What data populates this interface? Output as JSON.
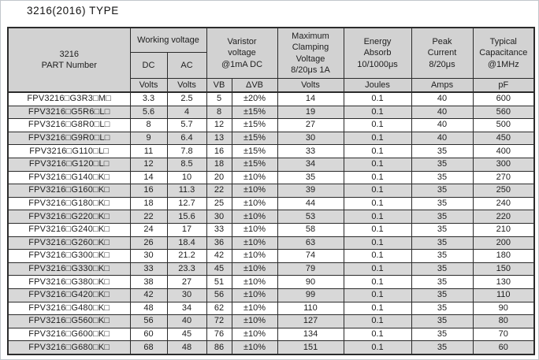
{
  "title": "3216(2016) TYPE",
  "colors": {
    "border": "#2b2b2b",
    "header_bg": "#d2d2d2",
    "row_alt": "#d8d8d8",
    "text": "#1e1e1e"
  },
  "table": {
    "header": {
      "part_number": "3216\nPART Number",
      "working_voltage": "Working voltage",
      "dc": "DC",
      "ac": "AC",
      "varistor_voltage": "Varistor\nvoltage\n@1mA DC",
      "max_clamping_voltage": "Maximum\nClamping\nVoltage\n8/20μs 1A",
      "energy_absorb": "Energy\nAbsorb\n10/1000μs",
      "peak_current": "Peak\nCurrent\n8/20μs",
      "typical_capacitance": "Typical\nCapacitance\n@1MHz",
      "units": [
        "Volts",
        "Volts",
        "VB",
        "ΔVB",
        "Volts",
        "Joules",
        "Amps",
        "pF"
      ]
    },
    "columns": [
      "part",
      "dc",
      "ac",
      "vb",
      "dvb",
      "clamping",
      "energy",
      "peak",
      "capacitance"
    ],
    "rows": [
      {
        "part": "FPV3216□G3R3□M□",
        "dc": "3.3",
        "ac": "2.5",
        "vb": "5",
        "dvb": "±20%",
        "clamping": "14",
        "energy": "0.1",
        "peak": "40",
        "capacitance": "600"
      },
      {
        "part": "FPV3216□G5R6□L□",
        "dc": "5.6",
        "ac": "4",
        "vb": "8",
        "dvb": "±15%",
        "clamping": "19",
        "energy": "0.1",
        "peak": "40",
        "capacitance": "560"
      },
      {
        "part": "FPV3216□G8R0□L□",
        "dc": "8",
        "ac": "5.7",
        "vb": "12",
        "dvb": "±15%",
        "clamping": "27",
        "energy": "0.1",
        "peak": "40",
        "capacitance": "500"
      },
      {
        "part": "FPV3216□G9R0□L□",
        "dc": "9",
        "ac": "6.4",
        "vb": "13",
        "dvb": "±15%",
        "clamping": "30",
        "energy": "0.1",
        "peak": "40",
        "capacitance": "450"
      },
      {
        "part": "FPV3216□G110□L□",
        "dc": "11",
        "ac": "7.8",
        "vb": "16",
        "dvb": "±15%",
        "clamping": "33",
        "energy": "0.1",
        "peak": "35",
        "capacitance": "400"
      },
      {
        "part": "FPV3216□G120□L□",
        "dc": "12",
        "ac": "8.5",
        "vb": "18",
        "dvb": "±15%",
        "clamping": "34",
        "energy": "0.1",
        "peak": "35",
        "capacitance": "300"
      },
      {
        "part": "FPV3216□G140□K□",
        "dc": "14",
        "ac": "10",
        "vb": "20",
        "dvb": "±10%",
        "clamping": "35",
        "energy": "0.1",
        "peak": "35",
        "capacitance": "270"
      },
      {
        "part": "FPV3216□G160□K□",
        "dc": "16",
        "ac": "11.3",
        "vb": "22",
        "dvb": "±10%",
        "clamping": "39",
        "energy": "0.1",
        "peak": "35",
        "capacitance": "250"
      },
      {
        "part": "FPV3216□G180□K□",
        "dc": "18",
        "ac": "12.7",
        "vb": "25",
        "dvb": "±10%",
        "clamping": "44",
        "energy": "0.1",
        "peak": "35",
        "capacitance": "240"
      },
      {
        "part": "FPV3216□G220□K□",
        "dc": "22",
        "ac": "15.6",
        "vb": "30",
        "dvb": "±10%",
        "clamping": "53",
        "energy": "0.1",
        "peak": "35",
        "capacitance": "220"
      },
      {
        "part": "FPV3216□G240□K□",
        "dc": "24",
        "ac": "17",
        "vb": "33",
        "dvb": "±10%",
        "clamping": "58",
        "energy": "0.1",
        "peak": "35",
        "capacitance": "210"
      },
      {
        "part": "FPV3216□G260□K□",
        "dc": "26",
        "ac": "18.4",
        "vb": "36",
        "dvb": "±10%",
        "clamping": "63",
        "energy": "0.1",
        "peak": "35",
        "capacitance": "200"
      },
      {
        "part": "FPV3216□G300□K□",
        "dc": "30",
        "ac": "21.2",
        "vb": "42",
        "dvb": "±10%",
        "clamping": "74",
        "energy": "0.1",
        "peak": "35",
        "capacitance": "180"
      },
      {
        "part": "FPV3216□G330□K□",
        "dc": "33",
        "ac": "23.3",
        "vb": "45",
        "dvb": "±10%",
        "clamping": "79",
        "energy": "0.1",
        "peak": "35",
        "capacitance": "150"
      },
      {
        "part": "FPV3216□G380□K□",
        "dc": "38",
        "ac": "27",
        "vb": "51",
        "dvb": "±10%",
        "clamping": "90",
        "energy": "0.1",
        "peak": "35",
        "capacitance": "130"
      },
      {
        "part": "FPV3216□G420□K□",
        "dc": "42",
        "ac": "30",
        "vb": "56",
        "dvb": "±10%",
        "clamping": "99",
        "energy": "0.1",
        "peak": "35",
        "capacitance": "110"
      },
      {
        "part": "FPV3216□G480□K□",
        "dc": "48",
        "ac": "34",
        "vb": "62",
        "dvb": "±10%",
        "clamping": "110",
        "energy": "0.1",
        "peak": "35",
        "capacitance": "90"
      },
      {
        "part": "FPV3216□G560□K□",
        "dc": "56",
        "ac": "40",
        "vb": "72",
        "dvb": "±10%",
        "clamping": "127",
        "energy": "0.1",
        "peak": "35",
        "capacitance": "80"
      },
      {
        "part": "FPV3216□G600□K□",
        "dc": "60",
        "ac": "45",
        "vb": "76",
        "dvb": "±10%",
        "clamping": "134",
        "energy": "0.1",
        "peak": "35",
        "capacitance": "70"
      },
      {
        "part": "FPV3216□G680□K□",
        "dc": "68",
        "ac": "48",
        "vb": "86",
        "dvb": "±10%",
        "clamping": "151",
        "energy": "0.1",
        "peak": "35",
        "capacitance": "60"
      }
    ]
  }
}
